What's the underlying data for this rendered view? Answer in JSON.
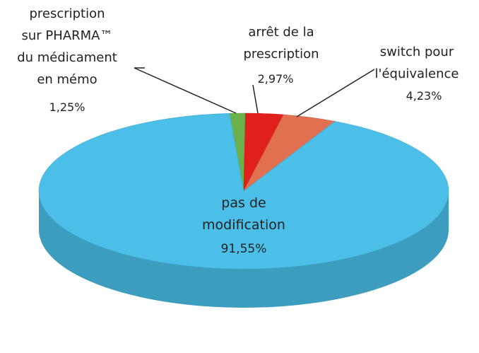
{
  "chart_data": {
    "type": "pie",
    "categories": [
      "prescription\nsur PHARMA™\ndu médicament\nen mémo",
      "arrêt de la\nprescription",
      "switch pour\nl'équivalence",
      "pas de\nmodification"
    ],
    "values": [
      1.25,
      2.97,
      4.23,
      91.55
    ],
    "value_labels": [
      "1,25%",
      "2,97%",
      "4,23%",
      "91,55%"
    ],
    "colors": [
      "#6ab04c",
      "#e0201c",
      "#e07050",
      "#4bbfe8"
    ]
  }
}
